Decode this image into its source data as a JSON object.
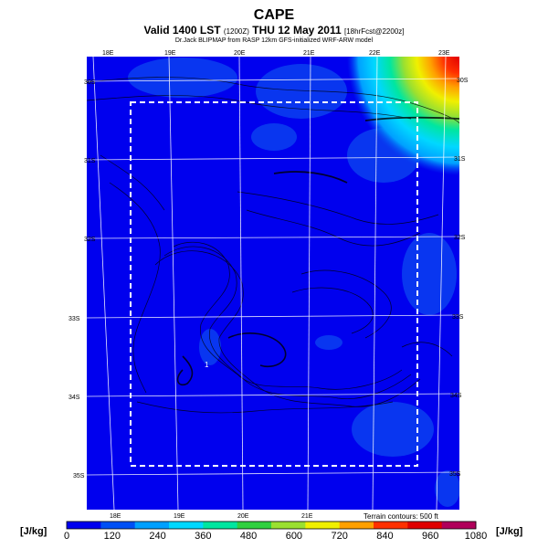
{
  "header": {
    "title": "CAPE",
    "valid_main": "Valid 1400 LST",
    "valid_utc": "(1200Z)",
    "valid_date": "THU 12 May 2011",
    "forecast_tag": "[18hrFcst@2200z]",
    "source_line": "Dr.Jack BLIPMAP from RASP 12km GFS-initialized WRF-ARW model"
  },
  "map": {
    "lon_labels_top": [
      "18E",
      "19E",
      "20E",
      "21E",
      "22E",
      "23E"
    ],
    "lon_labels_bottom": [
      "18E",
      "19E",
      "20E",
      "21E"
    ],
    "lat_labels_left": [
      "30S",
      "31S",
      "32S",
      "33S",
      "34S",
      "35S"
    ],
    "lat_labels_right": [
      "30S",
      "31S",
      "32S",
      "33S",
      "34S",
      "35S"
    ],
    "marker_label": "1",
    "terrain_note": "Terrain contours: 500 ft"
  },
  "colorbar": {
    "unit_left": "[J/kg]",
    "unit_right": "[J/kg]",
    "labels": [
      "0",
      "120",
      "240",
      "360",
      "480",
      "600",
      "720",
      "840",
      "960",
      "1080"
    ],
    "colors": [
      "#0000ee",
      "#0050f5",
      "#00a0ff",
      "#00d8ff",
      "#00e6a0",
      "#30d040",
      "#9ae030",
      "#f0f000",
      "#ffa000",
      "#ff3000",
      "#e00000",
      "#b0005a"
    ]
  }
}
